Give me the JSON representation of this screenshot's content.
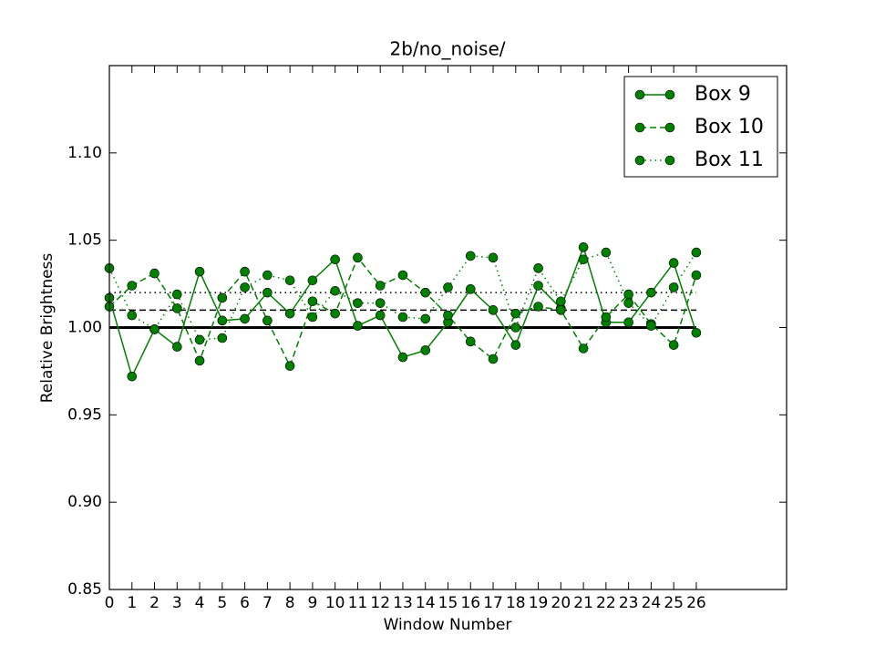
{
  "chart_data": {
    "type": "line",
    "title": "2b/no_noise/",
    "x_label": "Window Number",
    "y_label": "Relative Brightness",
    "x": [
      0,
      1,
      2,
      3,
      4,
      5,
      6,
      7,
      8,
      9,
      10,
      11,
      12,
      13,
      14,
      15,
      16,
      17,
      18,
      19,
      20,
      21,
      22,
      23,
      24,
      25,
      26
    ],
    "series": [
      {
        "name": "Box 9",
        "color": "#008000",
        "linestyle": "solid",
        "values": [
          1.017,
          0.972,
          0.999,
          0.989,
          1.032,
          1.004,
          1.005,
          1.02,
          1.008,
          1.027,
          1.039,
          1.001,
          1.007,
          0.983,
          0.987,
          1.003,
          1.022,
          1.01,
          0.99,
          1.024,
          1.011,
          1.046,
          1.003,
          1.003,
          1.02,
          1.037,
          0.997
        ]
      },
      {
        "name": "Box 10",
        "color": "#008000",
        "linestyle": "dashed",
        "values": [
          1.012,
          1.024,
          1.031,
          1.011,
          0.981,
          1.017,
          1.032,
          1.004,
          0.978,
          1.015,
          1.008,
          1.04,
          1.024,
          1.03,
          1.02,
          1.007,
          0.992,
          0.982,
          1.008,
          1.012,
          1.01,
          0.988,
          1.006,
          1.019,
          1.002,
          0.99,
          1.03
        ]
      },
      {
        "name": "Box 11",
        "color": "#008000",
        "linestyle": "dotted",
        "values": [
          1.034,
          1.007,
          0.999,
          1.019,
          0.993,
          0.994,
          1.023,
          1.03,
          1.027,
          1.006,
          1.021,
          1.014,
          1.014,
          1.006,
          1.005,
          1.023,
          1.041,
          1.04,
          1.0,
          1.034,
          1.015,
          1.039,
          1.043,
          1.014,
          1.001,
          1.023,
          1.043
        ]
      }
    ],
    "hlines": [
      {
        "value": 1.0,
        "linestyle": "solid",
        "color": "#000000"
      },
      {
        "value": 1.01,
        "linestyle": "dashed",
        "color": "#000000"
      },
      {
        "value": 1.02,
        "linestyle": "dotted",
        "color": "#000000"
      }
    ],
    "xlim": [
      0,
      30
    ],
    "xticks": [
      0,
      1,
      2,
      3,
      4,
      5,
      6,
      7,
      8,
      9,
      10,
      11,
      12,
      13,
      14,
      15,
      16,
      17,
      18,
      19,
      20,
      21,
      22,
      23,
      24,
      25,
      26
    ],
    "ylim": [
      0.85,
      1.15
    ],
    "yticks": [
      {
        "value": 0.85,
        "label": "0.85"
      },
      {
        "value": 0.9,
        "label": "0.90"
      },
      {
        "value": 0.95,
        "label": "0.95"
      },
      {
        "value": 1.0,
        "label": "1.00"
      },
      {
        "value": 1.05,
        "label": "1.05"
      },
      {
        "value": 1.1,
        "label": "1.10"
      }
    ],
    "legend": "upper right",
    "grid": false
  }
}
